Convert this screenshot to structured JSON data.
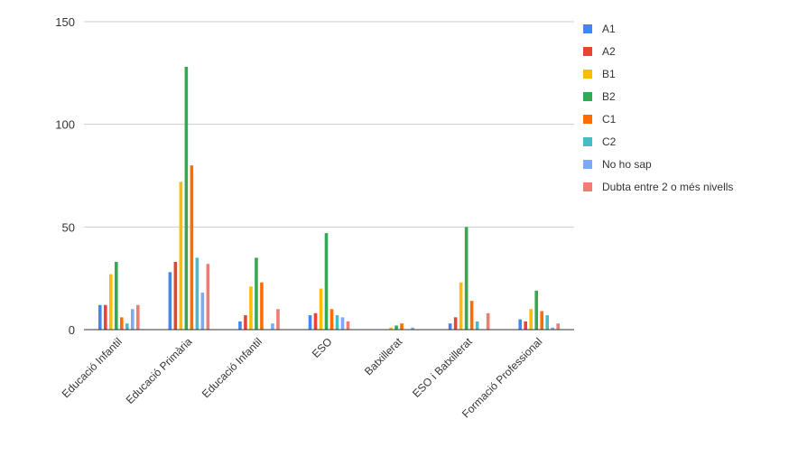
{
  "chart_data": {
    "type": "bar",
    "title": "",
    "xlabel": "",
    "ylabel": "",
    "ylim": [
      0,
      150
    ],
    "yticks": [
      0,
      50,
      100,
      150
    ],
    "grid": true,
    "legend_position": "right",
    "categories": [
      "Educació Infantil",
      "Educació Primària",
      "Educació Infantil",
      "ESO",
      "Batxillerat",
      "ESO i Batxillerat",
      "Formació Professional"
    ],
    "series": [
      {
        "name": "A1",
        "color": "#4285f4",
        "values": [
          12,
          28,
          4,
          7,
          0,
          3,
          5
        ]
      },
      {
        "name": "A2",
        "color": "#ea4335",
        "values": [
          12,
          33,
          7,
          8,
          0,
          6,
          4
        ]
      },
      {
        "name": "B1",
        "color": "#fbbc04",
        "values": [
          27,
          72,
          21,
          20,
          1,
          23,
          10
        ]
      },
      {
        "name": "B2",
        "color": "#34a853",
        "values": [
          33,
          128,
          35,
          47,
          2,
          50,
          19
        ]
      },
      {
        "name": "C1",
        "color": "#ff6d01",
        "values": [
          6,
          80,
          23,
          10,
          3,
          14,
          9
        ]
      },
      {
        "name": "C2",
        "color": "#46bdc6",
        "values": [
          3,
          35,
          0,
          7,
          0,
          4,
          7
        ]
      },
      {
        "name": "No ho sap",
        "color": "#7baaf7",
        "values": [
          10,
          18,
          3,
          6,
          1,
          0,
          1
        ]
      },
      {
        "name": "Dubta entre 2 o més nivells",
        "color": "#f07b72",
        "values": [
          12,
          32,
          10,
          4,
          0,
          8,
          3
        ]
      }
    ]
  }
}
